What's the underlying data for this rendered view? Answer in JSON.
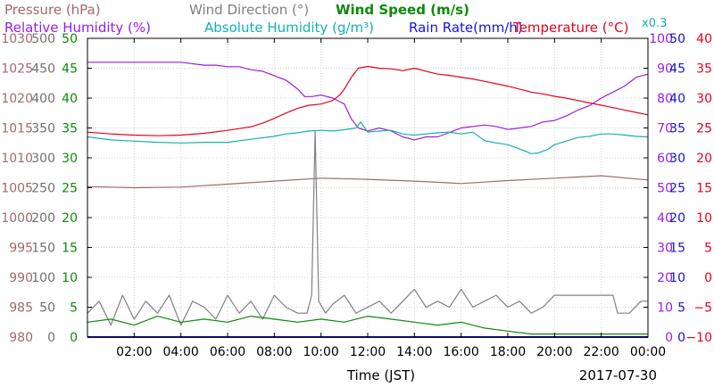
{
  "chart_data": {
    "type": "line",
    "date": "2017-07-30",
    "xlabel": "Time (JST)",
    "x_ticks": [
      "02:00",
      "04:00",
      "06:00",
      "08:00",
      "10:00",
      "12:00",
      "14:00",
      "16:00",
      "18:00",
      "20:00",
      "22:00",
      "00:00"
    ],
    "xlim_hours": [
      0,
      24
    ],
    "grid": true,
    "legend_placement": "top",
    "legend": [
      {
        "label": "Pressure (hPa)",
        "color": "#a06a6a"
      },
      {
        "label": "Wind Direction (°)",
        "color": "#808080"
      },
      {
        "label": "Wind Speed (m/s)",
        "color": "#0a8a0a"
      },
      {
        "label": "Relative Humidity (%)",
        "color": "#9a1ee0"
      },
      {
        "label": "Absolute Humidity (g/m³)",
        "color": "#16b0b0"
      },
      {
        "label": "Rain Rate(mm/h)",
        "color": "#1515d6"
      },
      {
        "label": "Temperature (°C)",
        "color": "#e8001e"
      }
    ],
    "absolute_humidity_scale_note": "x0.3",
    "axes": {
      "pressure": {
        "min": 980,
        "max": 1030,
        "ticks": [
          "1030",
          "1025",
          "1020",
          "1015",
          "1010",
          "1005",
          "1000",
          "995",
          "990",
          "985",
          "980"
        ],
        "color": "#a06a6a"
      },
      "wind_direction": {
        "min": 0,
        "max": 500,
        "ticks": [
          "500",
          "450",
          "400",
          "350",
          "300",
          "250",
          "200",
          "150",
          "100",
          "50",
          "0"
        ],
        "color": "#707070"
      },
      "wind_speed": {
        "min": 0,
        "max": 50,
        "ticks": [
          "50",
          "45",
          "40",
          "35",
          "30",
          "25",
          "20",
          "15",
          "10",
          "5",
          "0"
        ],
        "color": "#0a8a0a"
      },
      "relative_humidity": {
        "min": 0,
        "max": 100,
        "ticks": [
          "100",
          "90",
          "80",
          "70",
          "60",
          "50",
          "40",
          "30",
          "20",
          "10",
          "0"
        ],
        "color": "#9a1ee0"
      },
      "rain_rate": {
        "min": 0,
        "max": 50,
        "ticks": [
          "50",
          "45",
          "40",
          "35",
          "30",
          "25",
          "20",
          "15",
          "10",
          "5",
          "0"
        ],
        "color": "#1515d6"
      },
      "temperature": {
        "min": -10,
        "max": 40,
        "ticks": [
          "40",
          "35",
          "30",
          "25",
          "20",
          "15",
          "10",
          "5",
          "0",
          "−5",
          "−10"
        ],
        "color": "#e8001e"
      }
    },
    "series": [
      {
        "name": "Temperature (°C)",
        "axis": "temperature",
        "color": "#e8001e",
        "x": [
          0,
          1,
          2,
          3,
          4,
          5,
          6,
          7,
          7.5,
          8,
          8.5,
          9,
          9.5,
          10,
          10.5,
          10.8,
          11,
          11.3,
          11.6,
          12,
          12.5,
          13,
          13.5,
          14,
          14.5,
          15,
          15.5,
          16,
          16.5,
          17,
          17.5,
          18,
          18.5,
          19,
          19.5,
          20,
          20.5,
          21,
          21.5,
          22,
          22.5,
          23,
          23.5,
          24
        ],
        "y": [
          24.3,
          24.0,
          23.8,
          23.7,
          23.8,
          24.1,
          24.6,
          25.2,
          25.8,
          26.6,
          27.5,
          28.3,
          28.8,
          29.0,
          29.6,
          30.5,
          31.5,
          33.5,
          35.0,
          35.3,
          35.0,
          34.9,
          34.6,
          35.0,
          34.5,
          34.0,
          33.8,
          33.5,
          33.2,
          32.8,
          32.4,
          32.0,
          31.5,
          31.0,
          30.7,
          30.3,
          30.0,
          29.6,
          29.2,
          28.8,
          28.4,
          28.0,
          27.6,
          27.2
        ]
      },
      {
        "name": "Relative Humidity (%)",
        "axis": "relative_humidity",
        "color": "#9a1ee0",
        "x": [
          0,
          2,
          4,
          5,
          5.5,
          6,
          6.5,
          7,
          7.5,
          8,
          8.5,
          9,
          9.3,
          9.6,
          10,
          10.5,
          11,
          11.3,
          11.6,
          12,
          12.5,
          13,
          13.5,
          14,
          14.5,
          15,
          15.5,
          16,
          17,
          17.5,
          18,
          18.5,
          19,
          19.5,
          20,
          20.5,
          21,
          21.5,
          22,
          22.5,
          23,
          23.5,
          24
        ],
        "y": [
          92,
          92,
          92,
          91,
          91,
          90.5,
          90.5,
          89.5,
          89,
          87.5,
          86,
          83,
          80.5,
          80.5,
          81,
          80,
          78,
          73,
          70,
          69,
          70,
          69,
          67,
          66,
          67,
          67,
          68.5,
          70,
          71,
          70.5,
          69.5,
          70,
          70.5,
          72,
          72.5,
          74,
          76,
          77.5,
          80,
          82,
          84,
          87,
          88
        ]
      },
      {
        "name": "Absolute Humidity (g/m³)",
        "axis": "wind_speed",
        "color": "#16b0b0",
        "x": [
          0,
          1,
          2,
          3,
          4,
          5,
          6,
          7,
          8,
          8.5,
          9,
          9.5,
          10,
          10.5,
          11,
          11.5,
          11.7,
          12,
          12.5,
          13,
          13.5,
          14,
          14.5,
          15,
          15.5,
          16,
          16.5,
          17,
          17.5,
          18,
          18.5,
          19,
          19.3,
          19.7,
          20,
          20.5,
          21,
          21.5,
          22,
          22.5,
          23,
          23.5,
          24
        ],
        "y": [
          33.5,
          33.0,
          32.8,
          32.6,
          32.5,
          32.6,
          32.6,
          33.1,
          33.6,
          34.0,
          34.2,
          34.5,
          34.6,
          34.5,
          34.7,
          35.0,
          36.0,
          34.3,
          34.5,
          34.6,
          34.0,
          33.8,
          34.0,
          34.2,
          34.3,
          34.0,
          34.3,
          32.9,
          32.5,
          32.2,
          31.5,
          30.7,
          30.8,
          31.4,
          32.2,
          32.8,
          33.4,
          33.6,
          34.0,
          34.0,
          33.8,
          33.6,
          33.5
        ]
      },
      {
        "name": "Pressure (hPa)",
        "axis": "pressure",
        "color": "#a06a6a",
        "x": [
          0,
          2,
          4,
          6,
          8,
          10,
          12,
          14,
          16,
          18,
          20,
          22,
          24
        ],
        "y": [
          1005.2,
          1005.0,
          1005.1,
          1005.6,
          1006.1,
          1006.6,
          1006.4,
          1006.1,
          1005.7,
          1006.2,
          1006.6,
          1007.0,
          1006.3
        ]
      },
      {
        "name": "Wind Direction (°)",
        "axis": "wind_direction",
        "color": "#808080",
        "x": [
          0,
          0.5,
          1,
          1.5,
          2,
          2.5,
          3,
          3.5,
          4,
          4.5,
          5,
          5.5,
          6,
          6.5,
          7,
          7.5,
          8,
          8.5,
          9,
          9.4,
          9.6,
          9.75,
          9.9,
          10.2,
          10.5,
          11,
          11.5,
          12,
          12.5,
          13,
          13.5,
          14,
          14.5,
          15,
          15.5,
          16,
          16.5,
          17,
          17.5,
          18,
          18.5,
          19,
          19.5,
          20,
          21,
          22,
          22.5,
          22.7,
          23.2,
          23.7,
          24
        ],
        "y": [
          40,
          60,
          20,
          70,
          30,
          60,
          40,
          70,
          20,
          60,
          50,
          30,
          70,
          40,
          60,
          30,
          70,
          50,
          40,
          40,
          70,
          345,
          60,
          40,
          55,
          70,
          40,
          50,
          60,
          40,
          60,
          80,
          50,
          60,
          50,
          80,
          50,
          60,
          70,
          50,
          60,
          40,
          50,
          70,
          70,
          70,
          70,
          40,
          40,
          60,
          60
        ]
      },
      {
        "name": "Wind Speed (m/s)",
        "axis": "wind_speed",
        "color": "#0a8a0a",
        "x": [
          0,
          1,
          2,
          3,
          4,
          5,
          6,
          7,
          8,
          9,
          10,
          11,
          12,
          13,
          14,
          15,
          16,
          17,
          18,
          19,
          20,
          21,
          22,
          23,
          24
        ],
        "y": [
          2.5,
          3.0,
          2.0,
          3.5,
          2.5,
          3.0,
          2.5,
          3.5,
          3.0,
          2.5,
          3.0,
          2.5,
          3.5,
          3.0,
          2.5,
          2.0,
          2.5,
          1.5,
          1.0,
          0.5,
          0.5,
          0.5,
          0.5,
          0.5,
          0.5
        ]
      },
      {
        "name": "Rain Rate(mm/h)",
        "axis": "rain_rate",
        "color": "#1515d6",
        "x": [
          0,
          24
        ],
        "y": [
          0,
          0
        ]
      }
    ]
  }
}
